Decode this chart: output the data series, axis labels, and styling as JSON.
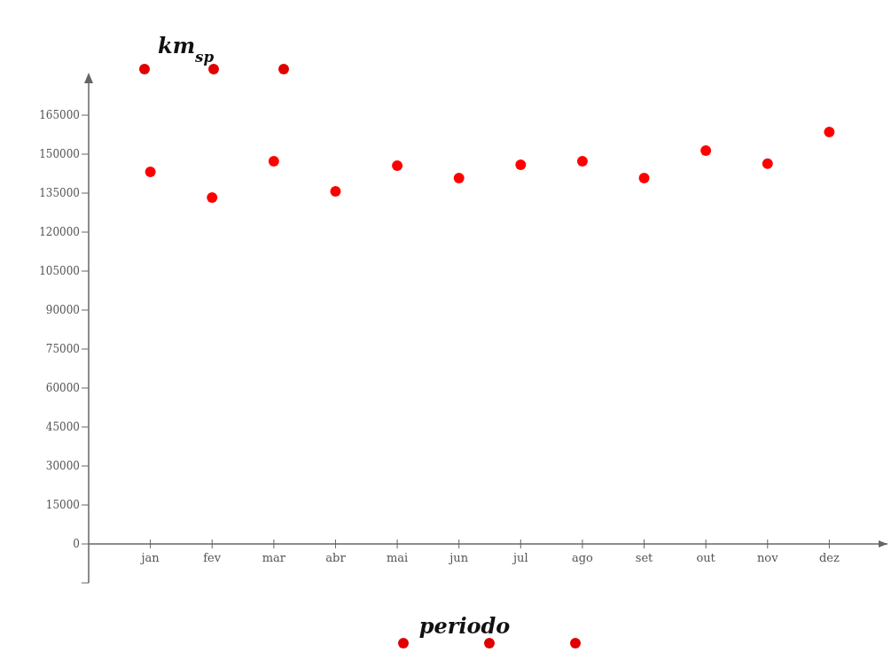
{
  "chart_data": {
    "type": "scatter",
    "xlabel": "periodo",
    "ylabel": "km$_{sp}$",
    "categories": [
      "jan",
      "fev",
      "mar",
      "abr",
      "mai",
      "jun",
      "jul",
      "ago",
      "set",
      "out",
      "nov",
      "dez"
    ],
    "series": [
      {
        "color": "#ff0000",
        "values": [
          143200,
          133300,
          147300,
          135700,
          145600,
          140800,
          145900,
          147300,
          140800,
          151400,
          146300,
          158500
        ]
      }
    ],
    "ylim": [
      -15000,
      180000
    ],
    "yticks": [
      {
        "value": -15000,
        "label": null
      },
      0,
      15000,
      30000,
      45000,
      60000,
      75000,
      90000,
      105000,
      120000,
      135000,
      150000,
      165000
    ],
    "marker": "circle"
  }
}
